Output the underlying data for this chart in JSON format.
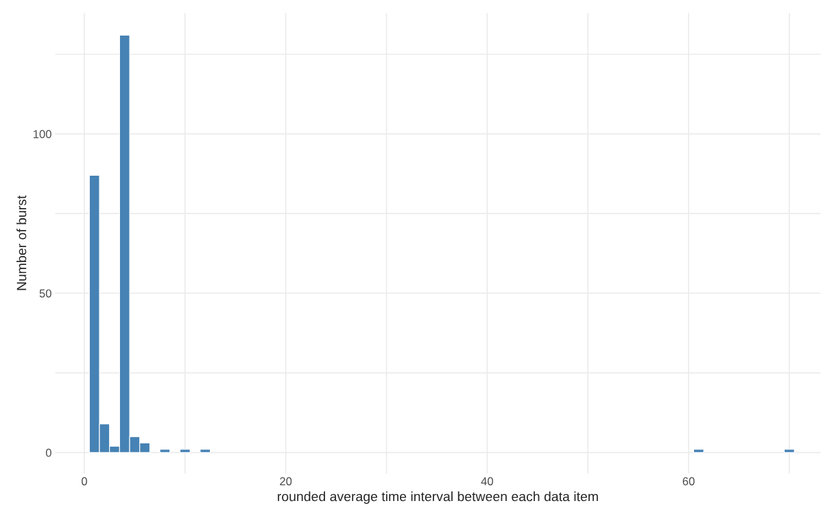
{
  "chart_data": {
    "type": "histogram",
    "xlabel": "rounded average time interval between each data item",
    "ylabel": "Number of burst",
    "bins": [
      0.5,
      1.5,
      2.5,
      3.5,
      4.5,
      5.5,
      6.5,
      7.5,
      8.5,
      9.5,
      10.5,
      11.5,
      12.5,
      13.5,
      14.5,
      15.5,
      16.5,
      17.5,
      18.5,
      19.5,
      20.5,
      21.5,
      22.5,
      23.5,
      24.5,
      25.5,
      26.5,
      27.5,
      28.5,
      29.5,
      30.5,
      31.5,
      32.5,
      33.5,
      34.5,
      35.5,
      36.5,
      37.5,
      38.5,
      39.5,
      40.5,
      41.5,
      42.5,
      43.5,
      44.5,
      45.5,
      46.5,
      47.5,
      48.5,
      49.5,
      50.5,
      51.5,
      52.5,
      53.5,
      54.5,
      55.5,
      56.5,
      57.5,
      58.5,
      59.5,
      60.5,
      61.5,
      62.5,
      63.5,
      64.5,
      65.5,
      66.5,
      67.5,
      68.5,
      69.5,
      70.5
    ],
    "values": [
      87,
      9,
      2,
      131,
      5,
      3,
      0,
      1,
      0,
      1,
      0,
      1,
      0,
      0,
      0,
      0,
      0,
      0,
      0,
      0,
      0,
      0,
      0,
      0,
      0,
      0,
      0,
      0,
      0,
      0,
      0,
      0,
      0,
      0,
      0,
      0,
      0,
      0,
      0,
      0,
      0,
      0,
      0,
      0,
      0,
      0,
      0,
      0,
      0,
      0,
      0,
      0,
      0,
      0,
      0,
      0,
      0,
      0,
      0,
      0,
      1,
      0,
      0,
      0,
      0,
      0,
      0,
      0,
      0,
      1
    ],
    "color": "#4682b4",
    "xlim": [
      -2.9,
      73.1
    ],
    "ylim": [
      -6.6,
      138
    ],
    "xticks": [
      0,
      {
        "value": 10,
        "label": null
      },
      20,
      {
        "value": 30,
        "label": null
      },
      40,
      {
        "value": 50,
        "label": null
      },
      60,
      {
        "value": 70,
        "label": null
      }
    ],
    "yticks": [
      0,
      {
        "value": 25,
        "label": null
      },
      50,
      {
        "value": 75,
        "label": null
      },
      100,
      {
        "value": 125,
        "label": null
      }
    ],
    "grid": true
  }
}
